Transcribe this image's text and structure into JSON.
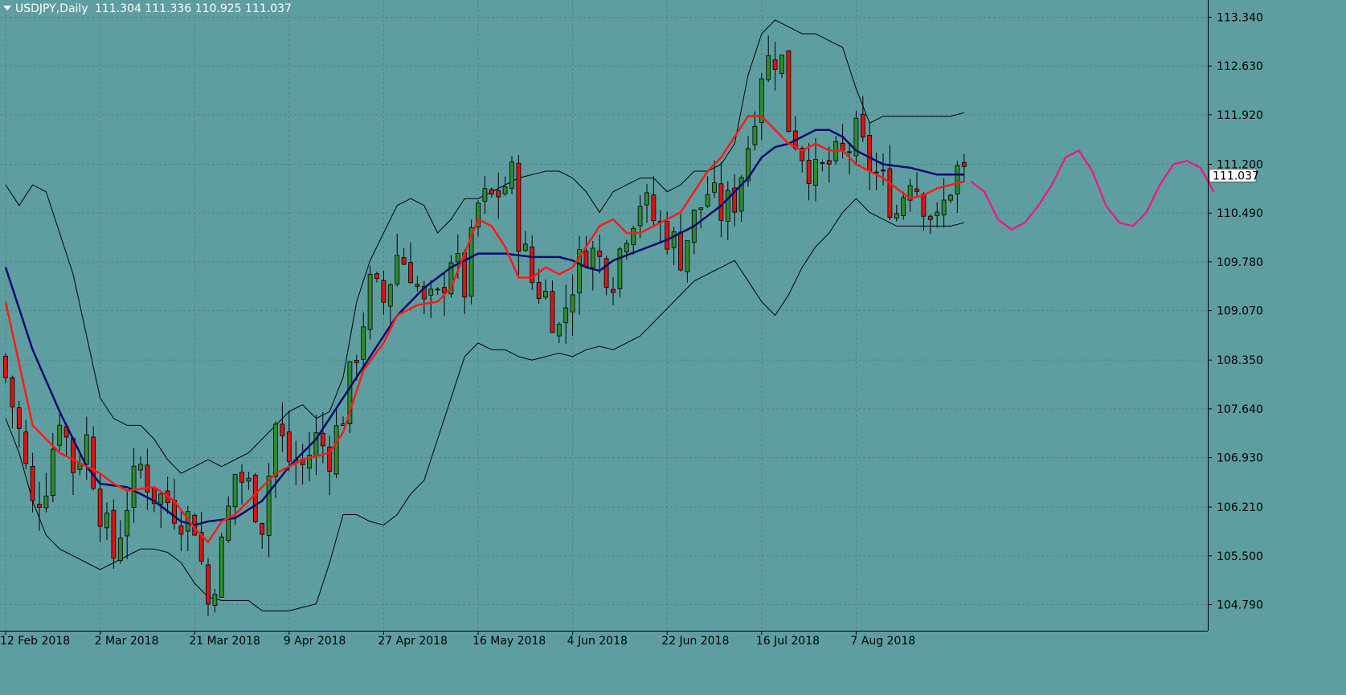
{
  "header": {
    "symbol": "USDJPY,Daily",
    "ohlc": "111.304 111.336 110.925 111.037"
  },
  "current_price_label": "111.037",
  "colors": {
    "background": "#5f9ea0",
    "grid": "#4d8588",
    "bull_candle": "#2e8b2e",
    "bear_candle": "#dc1414",
    "ema_fast": "#ff1a1a",
    "ma_slow": "#0a0a6e",
    "bollinger": "#000000",
    "drawing": "#e0208c"
  },
  "icons": [
    "dropdown-triangle-icon"
  ],
  "chart_data": {
    "type": "candlestick",
    "symbol": "USDJPY",
    "timeframe": "Daily",
    "ylim": [
      104.5,
      113.55
    ],
    "yticks": [
      "113.340",
      "112.630",
      "111.920",
      "111.200",
      "110.490",
      "109.780",
      "109.070",
      "108.350",
      "107.640",
      "106.930",
      "106.210",
      "105.500",
      "104.790"
    ],
    "xticks": [
      {
        "label": "12 Feb 2018",
        "bar": 0
      },
      {
        "label": "2 Mar 2018",
        "bar": 14
      },
      {
        "label": "21 Mar 2018",
        "bar": 28
      },
      {
        "label": "9 Apr 2018",
        "bar": 42
      },
      {
        "label": "27 Apr 2018",
        "bar": 56
      },
      {
        "label": "16 May 2018",
        "bar": 70
      },
      {
        "label": "4 Jun 2018",
        "bar": 84
      },
      {
        "label": "22 Jun 2018",
        "bar": 98
      },
      {
        "label": "16 Jul 2018",
        "bar": 112
      },
      {
        "label": "7 Aug 2018",
        "bar": 126
      }
    ],
    "close_anchors": [
      [
        0,
        108.1
      ],
      [
        2,
        107.3
      ],
      [
        4,
        106.2
      ],
      [
        6,
        106.6
      ],
      [
        8,
        107.6
      ],
      [
        10,
        106.8
      ],
      [
        12,
        107.2
      ],
      [
        14,
        106.2
      ],
      [
        16,
        105.5
      ],
      [
        18,
        106.3
      ],
      [
        20,
        106.8
      ],
      [
        22,
        106.4
      ],
      [
        24,
        106.3
      ],
      [
        26,
        106.1
      ],
      [
        28,
        106.0
      ],
      [
        30,
        104.8
      ],
      [
        32,
        105.6
      ],
      [
        34,
        106.7
      ],
      [
        36,
        106.5
      ],
      [
        38,
        106.0
      ],
      [
        40,
        107.4
      ],
      [
        42,
        106.9
      ],
      [
        44,
        106.8
      ],
      [
        46,
        107.2
      ],
      [
        48,
        107.0
      ],
      [
        50,
        107.6
      ],
      [
        52,
        108.5
      ],
      [
        54,
        109.4
      ],
      [
        56,
        109.2
      ],
      [
        58,
        109.9
      ],
      [
        60,
        109.7
      ],
      [
        62,
        109.1
      ],
      [
        64,
        109.2
      ],
      [
        66,
        109.9
      ],
      [
        68,
        109.4
      ],
      [
        70,
        110.6
      ],
      [
        72,
        110.7
      ],
      [
        74,
        110.9
      ],
      [
        75,
        111.0
      ],
      [
        76,
        110.2
      ],
      [
        78,
        109.5
      ],
      [
        80,
        109.3
      ],
      [
        82,
        108.8
      ],
      [
        84,
        109.5
      ],
      [
        86,
        110.0
      ],
      [
        88,
        109.8
      ],
      [
        90,
        109.6
      ],
      [
        92,
        110.3
      ],
      [
        94,
        110.7
      ],
      [
        96,
        110.4
      ],
      [
        98,
        110.2
      ],
      [
        100,
        109.9
      ],
      [
        102,
        110.4
      ],
      [
        104,
        110.8
      ],
      [
        106,
        110.5
      ],
      [
        108,
        110.7
      ],
      [
        110,
        111.5
      ],
      [
        112,
        112.6
      ],
      [
        114,
        112.8
      ],
      [
        115,
        112.7
      ],
      [
        116,
        111.8
      ],
      [
        118,
        111.4
      ],
      [
        120,
        111.0
      ],
      [
        122,
        111.2
      ],
      [
        124,
        111.3
      ],
      [
        126,
        111.6
      ],
      [
        128,
        111.2
      ],
      [
        130,
        110.9
      ],
      [
        132,
        110.5
      ],
      [
        134,
        111.1
      ],
      [
        136,
        110.7
      ],
      [
        138,
        110.3
      ],
      [
        139,
        110.6
      ],
      [
        140,
        110.9
      ],
      [
        141,
        111.1
      ],
      [
        142,
        111.04
      ]
    ],
    "ema_fast_anchors": [
      [
        0,
        109.2
      ],
      [
        4,
        107.4
      ],
      [
        8,
        107.0
      ],
      [
        12,
        106.8
      ],
      [
        14,
        106.7
      ],
      [
        16,
        106.55
      ],
      [
        18,
        106.45
      ],
      [
        22,
        106.5
      ],
      [
        25,
        106.3
      ],
      [
        28,
        105.9
      ],
      [
        30,
        105.7
      ],
      [
        32,
        106.0
      ],
      [
        34,
        106.1
      ],
      [
        37,
        106.4
      ],
      [
        40,
        106.7
      ],
      [
        44,
        106.9
      ],
      [
        48,
        107.0
      ],
      [
        50,
        107.3
      ],
      [
        53,
        108.2
      ],
      [
        56,
        108.6
      ],
      [
        58,
        109.0
      ],
      [
        61,
        109.15
      ],
      [
        64,
        109.2
      ],
      [
        66,
        109.4
      ],
      [
        68,
        109.9
      ],
      [
        70,
        110.4
      ],
      [
        72,
        110.3
      ],
      [
        74,
        110.0
      ],
      [
        76,
        109.55
      ],
      [
        78,
        109.55
      ],
      [
        80,
        109.7
      ],
      [
        82,
        109.6
      ],
      [
        84,
        109.7
      ],
      [
        86,
        110.0
      ],
      [
        88,
        110.3
      ],
      [
        90,
        110.4
      ],
      [
        92,
        110.2
      ],
      [
        94,
        110.2
      ],
      [
        96,
        110.3
      ],
      [
        98,
        110.4
      ],
      [
        100,
        110.5
      ],
      [
        102,
        110.8
      ],
      [
        104,
        111.1
      ],
      [
        106,
        111.3
      ],
      [
        108,
        111.6
      ],
      [
        110,
        111.9
      ],
      [
        112,
        111.9
      ],
      [
        114,
        111.7
      ],
      [
        116,
        111.5
      ],
      [
        118,
        111.4
      ],
      [
        120,
        111.5
      ],
      [
        122,
        111.4
      ],
      [
        124,
        111.4
      ],
      [
        126,
        111.2
      ],
      [
        128,
        111.1
      ],
      [
        130,
        111.0
      ],
      [
        132,
        110.85
      ],
      [
        134,
        110.7
      ],
      [
        136,
        110.75
      ],
      [
        138,
        110.85
      ],
      [
        140,
        110.9
      ],
      [
        142,
        110.95
      ]
    ],
    "ma_slow_anchors": [
      [
        0,
        109.7
      ],
      [
        4,
        108.5
      ],
      [
        8,
        107.6
      ],
      [
        12,
        106.8
      ],
      [
        14,
        106.55
      ],
      [
        18,
        106.5
      ],
      [
        22,
        106.3
      ],
      [
        26,
        106.0
      ],
      [
        28,
        105.95
      ],
      [
        30,
        106.0
      ],
      [
        34,
        106.05
      ],
      [
        38,
        106.3
      ],
      [
        42,
        106.8
      ],
      [
        46,
        107.2
      ],
      [
        50,
        107.8
      ],
      [
        54,
        108.4
      ],
      [
        58,
        109.0
      ],
      [
        62,
        109.4
      ],
      [
        66,
        109.7
      ],
      [
        70,
        109.9
      ],
      [
        74,
        109.9
      ],
      [
        78,
        109.85
      ],
      [
        82,
        109.85
      ],
      [
        84,
        109.8
      ],
      [
        86,
        109.7
      ],
      [
        88,
        109.65
      ],
      [
        90,
        109.8
      ],
      [
        94,
        109.95
      ],
      [
        98,
        110.1
      ],
      [
        102,
        110.3
      ],
      [
        106,
        110.6
      ],
      [
        110,
        111.0
      ],
      [
        112,
        111.3
      ],
      [
        114,
        111.45
      ],
      [
        116,
        111.5
      ],
      [
        118,
        111.6
      ],
      [
        120,
        111.7
      ],
      [
        122,
        111.7
      ],
      [
        124,
        111.6
      ],
      [
        126,
        111.4
      ],
      [
        128,
        111.3
      ],
      [
        130,
        111.2
      ],
      [
        134,
        111.15
      ],
      [
        138,
        111.05
      ],
      [
        140,
        111.05
      ],
      [
        142,
        111.05
      ]
    ],
    "bb_upper_anchors": [
      [
        0,
        110.9
      ],
      [
        2,
        110.6
      ],
      [
        4,
        110.9
      ],
      [
        6,
        110.8
      ],
      [
        8,
        110.2
      ],
      [
        10,
        109.6
      ],
      [
        12,
        108.7
      ],
      [
        14,
        107.8
      ],
      [
        16,
        107.5
      ],
      [
        18,
        107.4
      ],
      [
        20,
        107.4
      ],
      [
        22,
        107.2
      ],
      [
        24,
        106.9
      ],
      [
        26,
        106.7
      ],
      [
        28,
        106.8
      ],
      [
        30,
        106.9
      ],
      [
        32,
        106.8
      ],
      [
        34,
        106.9
      ],
      [
        36,
        107.0
      ],
      [
        38,
        107.2
      ],
      [
        40,
        107.4
      ],
      [
        42,
        107.6
      ],
      [
        44,
        107.7
      ],
      [
        46,
        107.5
      ],
      [
        48,
        107.6
      ],
      [
        50,
        108.1
      ],
      [
        52,
        109.2
      ],
      [
        54,
        109.8
      ],
      [
        56,
        110.2
      ],
      [
        58,
        110.6
      ],
      [
        60,
        110.7
      ],
      [
        62,
        110.6
      ],
      [
        64,
        110.2
      ],
      [
        66,
        110.4
      ],
      [
        68,
        110.7
      ],
      [
        70,
        110.7
      ],
      [
        74,
        110.9
      ],
      [
        76,
        111.0
      ],
      [
        80,
        111.1
      ],
      [
        82,
        111.1
      ],
      [
        84,
        111.0
      ],
      [
        86,
        110.8
      ],
      [
        88,
        110.5
      ],
      [
        90,
        110.8
      ],
      [
        92,
        110.9
      ],
      [
        94,
        111.0
      ],
      [
        96,
        111.0
      ],
      [
        98,
        110.8
      ],
      [
        100,
        110.9
      ],
      [
        102,
        111.1
      ],
      [
        104,
        111.1
      ],
      [
        106,
        111.2
      ],
      [
        108,
        111.5
      ],
      [
        110,
        112.5
      ],
      [
        112,
        113.1
      ],
      [
        114,
        113.3
      ],
      [
        116,
        113.2
      ],
      [
        118,
        113.1
      ],
      [
        120,
        113.1
      ],
      [
        122,
        113.0
      ],
      [
        124,
        112.9
      ],
      [
        126,
        112.3
      ],
      [
        128,
        111.8
      ],
      [
        130,
        111.9
      ],
      [
        132,
        111.9
      ],
      [
        134,
        111.9
      ],
      [
        136,
        111.9
      ],
      [
        138,
        111.9
      ],
      [
        140,
        111.9
      ],
      [
        142,
        111.95
      ]
    ],
    "bb_lower_anchors": [
      [
        0,
        107.5
      ],
      [
        2,
        107.0
      ],
      [
        4,
        106.3
      ],
      [
        6,
        105.8
      ],
      [
        8,
        105.6
      ],
      [
        10,
        105.5
      ],
      [
        12,
        105.4
      ],
      [
        14,
        105.3
      ],
      [
        16,
        105.4
      ],
      [
        18,
        105.5
      ],
      [
        20,
        105.6
      ],
      [
        22,
        105.6
      ],
      [
        24,
        105.55
      ],
      [
        26,
        105.4
      ],
      [
        28,
        105.1
      ],
      [
        30,
        104.9
      ],
      [
        32,
        104.85
      ],
      [
        34,
        104.85
      ],
      [
        36,
        104.85
      ],
      [
        38,
        104.7
      ],
      [
        40,
        104.7
      ],
      [
        42,
        104.7
      ],
      [
        44,
        104.75
      ],
      [
        46,
        104.8
      ],
      [
        48,
        105.4
      ],
      [
        50,
        106.1
      ],
      [
        52,
        106.1
      ],
      [
        54,
        106.0
      ],
      [
        56,
        105.95
      ],
      [
        58,
        106.1
      ],
      [
        60,
        106.4
      ],
      [
        62,
        106.6
      ],
      [
        64,
        107.2
      ],
      [
        66,
        107.8
      ],
      [
        68,
        108.4
      ],
      [
        70,
        108.6
      ],
      [
        72,
        108.5
      ],
      [
        74,
        108.5
      ],
      [
        76,
        108.4
      ],
      [
        78,
        108.35
      ],
      [
        80,
        108.4
      ],
      [
        82,
        108.45
      ],
      [
        84,
        108.4
      ],
      [
        86,
        108.5
      ],
      [
        88,
        108.55
      ],
      [
        90,
        108.5
      ],
      [
        92,
        108.6
      ],
      [
        94,
        108.7
      ],
      [
        96,
        108.9
      ],
      [
        98,
        109.1
      ],
      [
        100,
        109.3
      ],
      [
        102,
        109.5
      ],
      [
        104,
        109.6
      ],
      [
        106,
        109.7
      ],
      [
        108,
        109.8
      ],
      [
        110,
        109.5
      ],
      [
        112,
        109.2
      ],
      [
        114,
        109.0
      ],
      [
        116,
        109.3
      ],
      [
        118,
        109.7
      ],
      [
        120,
        110.0
      ],
      [
        122,
        110.2
      ],
      [
        124,
        110.5
      ],
      [
        126,
        110.7
      ],
      [
        128,
        110.5
      ],
      [
        130,
        110.4
      ],
      [
        132,
        110.3
      ],
      [
        134,
        110.3
      ],
      [
        136,
        110.3
      ],
      [
        138,
        110.3
      ],
      [
        140,
        110.3
      ],
      [
        142,
        110.35
      ]
    ],
    "hand_drawing_projection": {
      "color": "#e0208c",
      "description_values": [
        [
          143,
          110.95
        ],
        [
          145,
          110.8
        ],
        [
          147,
          110.4
        ],
        [
          149,
          110.25
        ],
        [
          151,
          110.35
        ],
        [
          153,
          110.6
        ],
        [
          155,
          110.9
        ],
        [
          157,
          111.3
        ],
        [
          159,
          111.4
        ],
        [
          161,
          111.1
        ],
        [
          163,
          110.6
        ],
        [
          165,
          110.35
        ],
        [
          167,
          110.3
        ],
        [
          169,
          110.5
        ],
        [
          171,
          110.9
        ],
        [
          173,
          111.2
        ],
        [
          175,
          111.25
        ],
        [
          177,
          111.15
        ],
        [
          179,
          110.8
        ]
      ]
    }
  }
}
